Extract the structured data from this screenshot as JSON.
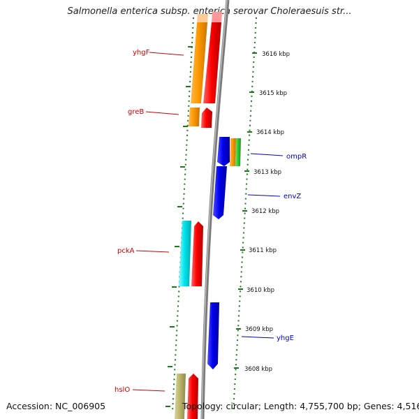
{
  "title": "Salmonella enterica subsp. enterica serovar Choleraesuis str...",
  "accession": "Accession: NC_006905",
  "topology": "Topology: circular; Length: 4,755,700 bp; Genes: 4,516",
  "colors": {
    "left_label": "#cc0000",
    "right_label": "#0000cc",
    "tick": "#1a7a1a",
    "backbone": "#888888",
    "orange": "#ff9900",
    "red": "#ff0000",
    "blue": "#0000ee",
    "green": "#33cc33",
    "cyan": "#00e5ee",
    "khaki": "#bdb76b"
  },
  "scale_labels": [
    "3616 kbp",
    "3615 kbp",
    "3614 kbp",
    "3613 kbp",
    "3612 kbp",
    "3611 kbp",
    "3610 kbp",
    "3609 kbp",
    "3608 kbp"
  ],
  "left_genes": [
    "yhgF",
    "greB",
    "pckA",
    "hslO"
  ],
  "right_genes": [
    "ompR",
    "envZ",
    "yhgE"
  ]
}
